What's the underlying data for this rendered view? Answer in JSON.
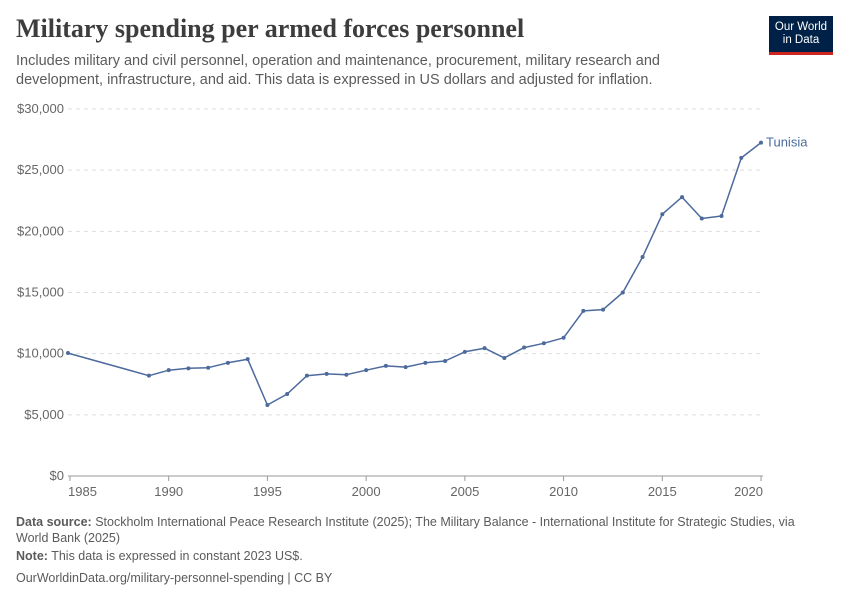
{
  "header": {
    "title": "Military spending per armed forces personnel",
    "subtitle": "Includes military and civil personnel, operation and maintenance, procurement, military research and development, infrastructure, and aid. This data is expressed in US dollars and adjusted for inflation.",
    "logo_line1": "Our World",
    "logo_line2": "in Data"
  },
  "footer": {
    "source_label": "Data source:",
    "source_text": "Stockholm International Peace Research Institute (2025); The Military Balance - International Institute for Strategic Studies, via World Bank (2025)",
    "note_label": "Note:",
    "note_text": "This data is expressed in constant 2023 US$.",
    "url_text": "OurWorldinData.org/military-personnel-spending | CC BY"
  },
  "colors": {
    "series": "#4c6a9c",
    "grid": "#dddddd",
    "axis": "#999999"
  },
  "chart_data": {
    "type": "line",
    "title": "Military spending per armed forces personnel",
    "xlim": [
      1985,
      2020
    ],
    "ylim": [
      0,
      30000
    ],
    "x_ticks": [
      1985,
      1990,
      1995,
      2000,
      2005,
      2010,
      2015,
      2020
    ],
    "x_tick_labels": [
      "1985",
      "1990",
      "1995",
      "2000",
      "2005",
      "2010",
      "2015",
      "2020"
    ],
    "y_ticks": [
      0,
      5000,
      10000,
      15000,
      20000,
      25000,
      30000
    ],
    "y_tick_labels": [
      "$0",
      "$5,000",
      "$10,000",
      "$15,000",
      "$20,000",
      "$25,000",
      "$30,000"
    ],
    "grid": "horizontal dashed",
    "series": [
      {
        "name": "Tunisia",
        "x": [
          1984.9,
          1989,
          1990,
          1991,
          1992,
          1993,
          1994,
          1995,
          1996,
          1997,
          1998,
          1999,
          2000,
          2001,
          2002,
          2003,
          2004,
          2005,
          2006,
          2007,
          2008,
          2009,
          2010,
          2011,
          2012,
          2013,
          2014,
          2015,
          2016,
          2017,
          2018,
          2019,
          2020
        ],
        "values": [
          10050,
          8200,
          8650,
          8800,
          8850,
          9250,
          9550,
          5800,
          6700,
          8200,
          8350,
          8280,
          8650,
          9000,
          8900,
          9250,
          9400,
          10150,
          10450,
          9650,
          10500,
          10850,
          11300,
          13500,
          13600,
          15000,
          17900,
          21400,
          22800,
          21050,
          21250,
          26000,
          27250
        ]
      }
    ]
  }
}
